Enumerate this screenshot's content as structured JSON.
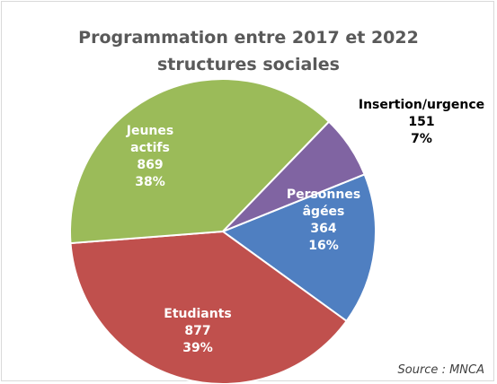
{
  "chart_data": {
    "type": "pie",
    "title": "Programmation entre 2017 et 2022",
    "subtitle": "structures sociales",
    "slices": [
      {
        "name": "Personnes\nâgées",
        "value": 364,
        "percent": "16%",
        "color": "#4f7fc1",
        "label_color": "#ffffff"
      },
      {
        "name": "Etudiants",
        "value": 877,
        "percent": "39%",
        "color": "#c0504d",
        "label_color": "#ffffff"
      },
      {
        "name": "Jeunes\nactifs",
        "value": 869,
        "percent": "38%",
        "color": "#9bbb59",
        "label_color": "#ffffff"
      },
      {
        "name": "Insertion/urgence",
        "value": 151,
        "percent": "7%",
        "color": "#8064a2",
        "label_color": "#000000"
      }
    ],
    "source": "Source : MNCA"
  }
}
